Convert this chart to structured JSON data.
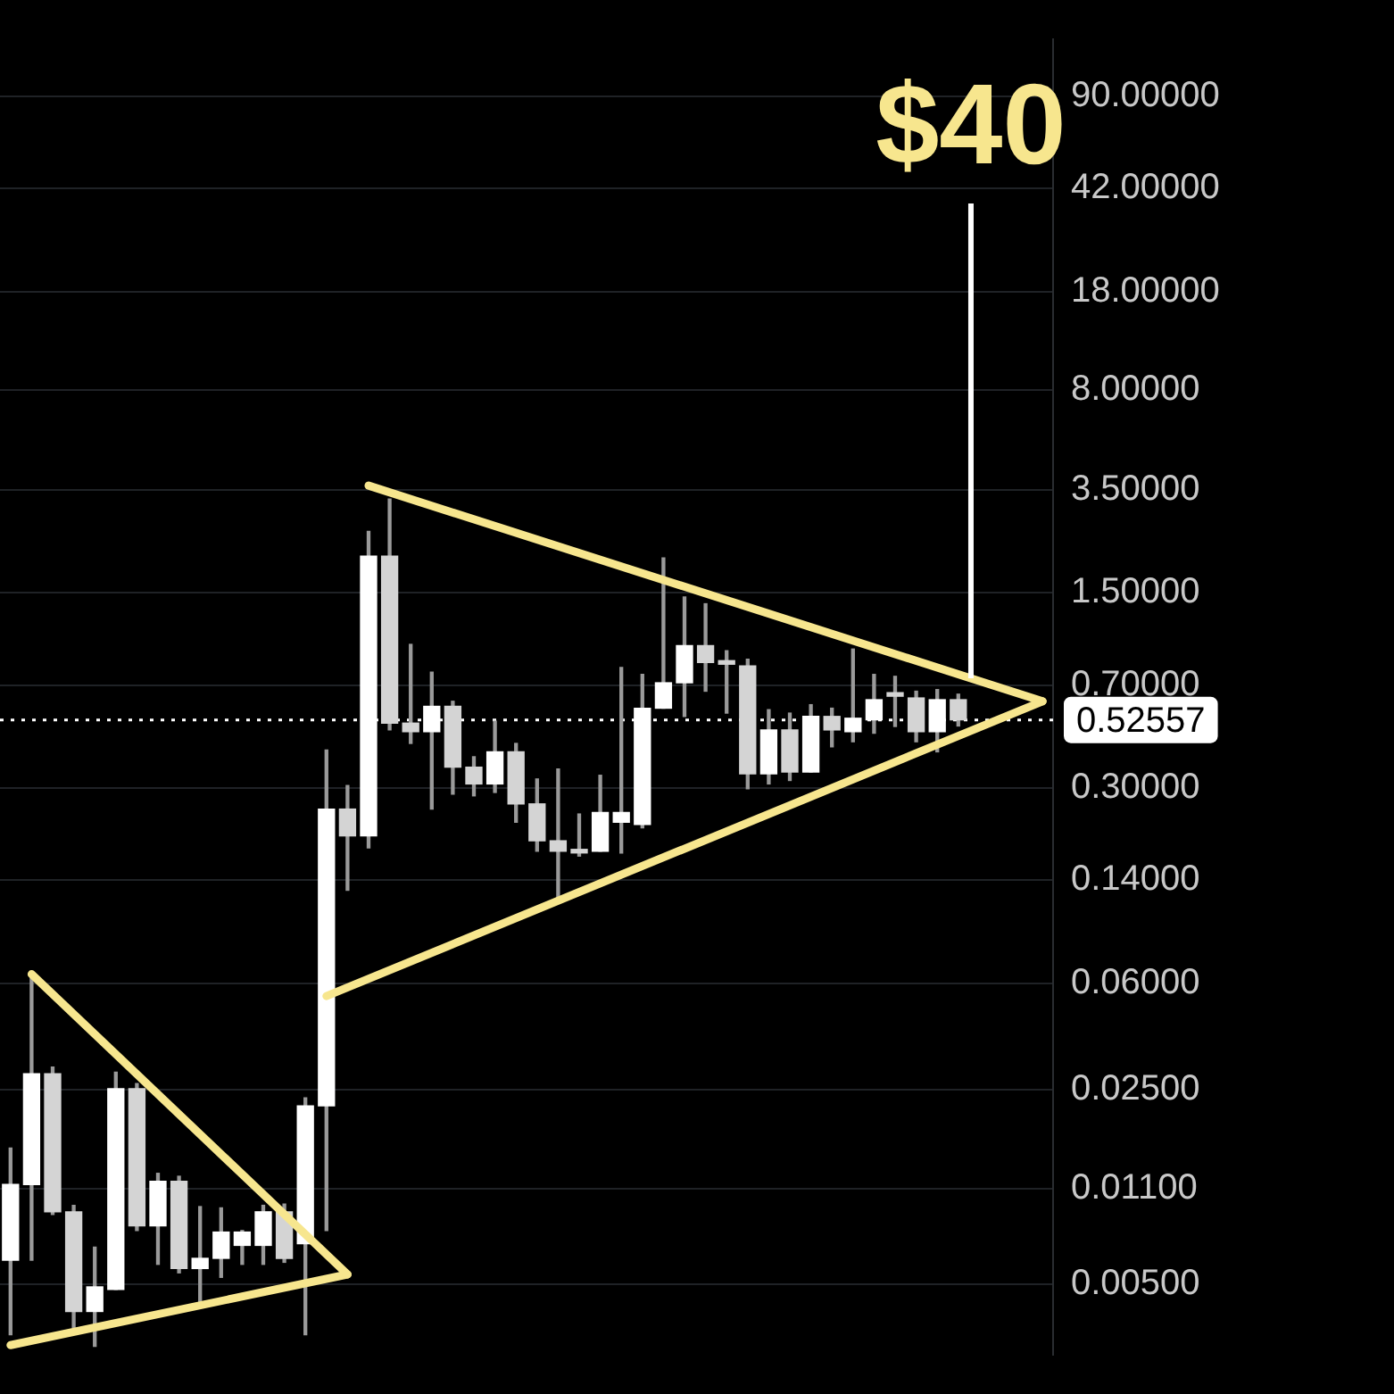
{
  "chart_data": {
    "type": "candlestick",
    "categories": [
      null,
      null,
      null,
      null,
      null,
      null,
      null,
      null,
      null,
      null,
      null,
      null,
      null,
      null,
      null,
      null,
      null,
      null,
      null,
      null,
      null,
      null,
      null,
      null,
      null,
      null,
      null,
      null,
      null,
      null,
      null,
      null,
      null,
      null,
      null,
      null,
      null,
      null,
      null,
      null,
      null,
      null,
      null,
      null,
      null,
      null,
      null,
      null,
      null,
      null
    ],
    "ohlc": [
      [
        0.0061,
        0.0154,
        0.0033,
        0.0114
      ],
      [
        0.0114,
        0.065,
        0.0061,
        0.0284
      ],
      [
        0.0284,
        0.03,
        0.0089,
        0.0091
      ],
      [
        0.0091,
        0.0096,
        0.0035,
        0.004
      ],
      [
        0.004,
        0.0068,
        0.003,
        0.0049
      ],
      [
        0.0048,
        0.0288,
        0.0048,
        0.0251
      ],
      [
        0.0251,
        0.0262,
        0.0078,
        0.0081
      ],
      [
        0.0081,
        0.0125,
        0.0059,
        0.0117
      ],
      [
        0.0117,
        0.0122,
        0.0055,
        0.0057
      ],
      [
        0.0057,
        0.0095,
        0.0043,
        0.0062
      ],
      [
        0.0062,
        0.0094,
        0.0053,
        0.0077
      ],
      [
        0.0069,
        0.0078,
        0.0059,
        0.0077
      ],
      [
        0.0069,
        0.0096,
        0.0059,
        0.0091
      ],
      [
        0.0091,
        0.0097,
        0.006,
        0.0062
      ],
      [
        0.007,
        0.0233,
        0.0033,
        0.0218
      ],
      [
        0.0218,
        0.41,
        0.0078,
        0.252
      ],
      [
        0.252,
        0.306,
        0.129,
        0.202
      ],
      [
        0.202,
        2.49,
        0.183,
        2.03
      ],
      [
        2.03,
        3.25,
        0.484,
        0.512
      ],
      [
        0.512,
        0.98,
        0.433,
        0.477
      ],
      [
        0.477,
        0.78,
        0.252,
        0.588
      ],
      [
        0.588,
        0.613,
        0.285,
        0.356
      ],
      [
        0.356,
        0.388,
        0.281,
        0.31
      ],
      [
        0.31,
        0.52,
        0.289,
        0.404
      ],
      [
        0.404,
        0.433,
        0.226,
        0.263
      ],
      [
        0.263,
        0.323,
        0.178,
        0.194
      ],
      [
        0.194,
        0.351,
        0.121,
        0.178
      ],
      [
        0.1805,
        0.242,
        0.171,
        0.1755
      ],
      [
        0.178,
        0.333,
        0.178,
        0.245
      ],
      [
        0.226,
        0.81,
        0.1755,
        0.245
      ],
      [
        0.222,
        0.765,
        0.216,
        0.579
      ],
      [
        0.579,
        2.0,
        0.579,
        0.714
      ],
      [
        0.714,
        1.45,
        0.541,
        0.97
      ],
      [
        0.97,
        1.37,
        0.666,
        0.844
      ],
      [
        0.844,
        0.93,
        0.556,
        0.832
      ],
      [
        0.82,
        0.867,
        0.298,
        0.337
      ],
      [
        0.337,
        0.572,
        0.31,
        0.484
      ],
      [
        0.484,
        0.556,
        0.319,
        0.342
      ],
      [
        0.342,
        0.596,
        0.342,
        0.541
      ],
      [
        0.541,
        0.579,
        0.421,
        0.484
      ],
      [
        0.477,
        0.943,
        0.439,
        0.533
      ],
      [
        0.526,
        0.765,
        0.471,
        0.621
      ],
      [
        0.648,
        0.753,
        0.498,
        0.639
      ],
      [
        0.63,
        0.666,
        0.439,
        0.477
      ],
      [
        0.477,
        0.675,
        0.404,
        0.621
      ],
      [
        0.621,
        0.65,
        0.5,
        0.526
      ],
      null,
      null,
      null,
      null
    ],
    "series": [
      {
        "type": "line",
        "color": "#f7e68e",
        "values": [
          null,
          0.0646,
          null,
          null,
          null,
          null,
          null,
          null,
          null,
          null,
          null,
          null,
          null,
          null,
          null,
          null,
          0.00543,
          null,
          null,
          null,
          null,
          null,
          null,
          null,
          null,
          null,
          null,
          null,
          null,
          null,
          null,
          null,
          null,
          null,
          null,
          null,
          null,
          null,
          null,
          null,
          null,
          null,
          null,
          null,
          null,
          null,
          null,
          null,
          null,
          null
        ]
      },
      {
        "type": "line",
        "color": "#f7e68e",
        "values": [
          0.00303,
          null,
          null,
          null,
          null,
          null,
          null,
          null,
          null,
          null,
          null,
          null,
          null,
          null,
          null,
          null,
          0.00543,
          null,
          null,
          null,
          null,
          null,
          null,
          null,
          null,
          null,
          null,
          null,
          null,
          null,
          null,
          null,
          null,
          null,
          null,
          null,
          null,
          null,
          null,
          null,
          null,
          null,
          null,
          null,
          null,
          null,
          null,
          null,
          null,
          null
        ]
      },
      {
        "type": "line",
        "color": "#f7e68e",
        "values": [
          null,
          null,
          null,
          null,
          null,
          null,
          null,
          null,
          null,
          null,
          null,
          null,
          null,
          null,
          null,
          0.0539,
          null,
          null,
          null,
          null,
          null,
          null,
          null,
          null,
          null,
          null,
          null,
          null,
          null,
          null,
          null,
          null,
          null,
          null,
          null,
          null,
          null,
          null,
          null,
          null,
          null,
          null,
          null,
          null,
          null,
          null,
          null,
          null,
          null,
          0.613
        ]
      },
      {
        "type": "line",
        "color": "#f7e68e",
        "values": [
          null,
          null,
          null,
          null,
          null,
          null,
          null,
          null,
          null,
          null,
          null,
          null,
          null,
          null,
          null,
          null,
          null,
          3.63,
          null,
          null,
          null,
          null,
          null,
          null,
          null,
          null,
          null,
          null,
          null,
          null,
          null,
          null,
          null,
          null,
          null,
          null,
          null,
          null,
          null,
          null,
          null,
          null,
          null,
          null,
          null,
          null,
          null,
          null,
          null,
          0.613
        ]
      }
    ],
    "annotations": [
      "$40"
    ],
    "ref_lines": [
      {
        "axis": "y",
        "value": 0.52557,
        "label": "0.52557",
        "color": "#ffffff",
        "line_style": "dotted"
      }
    ],
    "log": true,
    "ylim": [
      0.0028,
      144
    ],
    "yticks": [
      {
        "value": 90,
        "label": "90.00000"
      },
      {
        "value": 42,
        "label": "42.00000"
      },
      {
        "value": 18,
        "label": "18.00000"
      },
      {
        "value": 8,
        "label": "8.00000"
      },
      {
        "value": 3.5,
        "label": "3.50000"
      },
      {
        "value": 1.5,
        "label": "1.50000"
      },
      {
        "value": 0.7,
        "label": "0.70000"
      },
      {
        "value": 0.3,
        "label": "0.30000"
      },
      {
        "value": 0.14,
        "label": "0.14000"
      },
      {
        "value": 0.06,
        "label": "0.06000"
      },
      {
        "value": 0.025,
        "label": "0.02500"
      },
      {
        "value": 0.011,
        "label": "0.01100"
      },
      {
        "value": 0.005,
        "label": "0.00500"
      }
    ],
    "grid": "y",
    "legend": false
  }
}
